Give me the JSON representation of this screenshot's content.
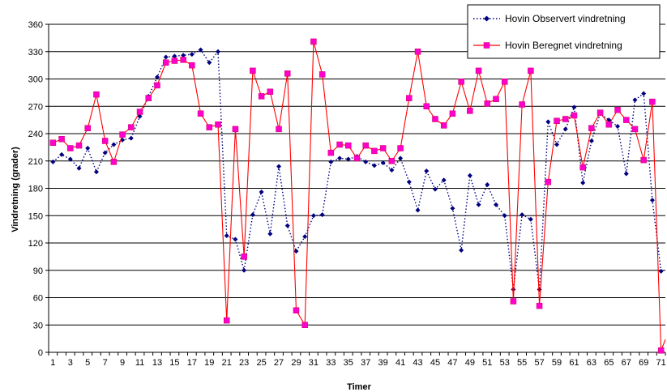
{
  "chart_data": {
    "type": "line",
    "xlabel": "Timer",
    "ylabel": "Vindretning   (grader)",
    "ylim": [
      0,
      360
    ],
    "yticks": [
      "0",
      "30",
      "60",
      "90",
      "120",
      "150",
      "180",
      "210",
      "240",
      "270",
      "300",
      "330",
      "360"
    ],
    "xticks": [
      "1",
      "3",
      "5",
      "7",
      "9",
      "11",
      "13",
      "15",
      "17",
      "19",
      "21",
      "23",
      "25",
      "27",
      "29",
      "31",
      "33",
      "35",
      "37",
      "39",
      "41",
      "43",
      "45",
      "47",
      "49",
      "51",
      "53",
      "55",
      "57",
      "59",
      "61",
      "63",
      "65",
      "67",
      "69",
      "71"
    ],
    "grid": "horizontal",
    "legend_position": "top-right",
    "series": [
      {
        "name": "Hovin Observert vindretning",
        "color": "#000080",
        "marker": "diamond",
        "line_style": "dotted",
        "values": [
          209,
          217,
          212,
          202,
          224,
          198,
          219,
          228,
          233,
          235,
          259,
          281,
          302,
          324,
          325,
          326,
          327,
          332,
          318,
          330,
          128,
          124,
          90,
          151,
          176,
          130,
          204,
          139,
          111,
          127,
          150,
          151,
          209,
          213,
          212,
          215,
          209,
          205,
          208,
          200,
          213,
          187,
          156,
          199,
          179,
          189,
          158,
          112,
          194,
          162,
          184,
          162,
          150,
          69,
          151,
          146,
          69,
          253,
          228,
          245,
          269,
          186,
          232,
          262,
          255,
          248,
          196,
          277,
          284,
          167,
          89
        ]
      },
      {
        "name": "Hovin Beregnet vindretning",
        "color": "#ff0000",
        "marker_color": "#ff00cc",
        "marker": "square",
        "line_style": "solid",
        "values": [
          230,
          234,
          224,
          227,
          246,
          283,
          232,
          209,
          239,
          247,
          264,
          279,
          293,
          318,
          320,
          321,
          315,
          262,
          247,
          250,
          35,
          245,
          105,
          309,
          281,
          286,
          245,
          306,
          46,
          30,
          341,
          305,
          219,
          228,
          227,
          213,
          227,
          221,
          224,
          210,
          224,
          279,
          330,
          270,
          256,
          249,
          262,
          297,
          265,
          309,
          273,
          278,
          297,
          56,
          272,
          309,
          51,
          187,
          254,
          256,
          260,
          203,
          246,
          263,
          250,
          266,
          255,
          245,
          211,
          275,
          2
        ]
      }
    ]
  }
}
